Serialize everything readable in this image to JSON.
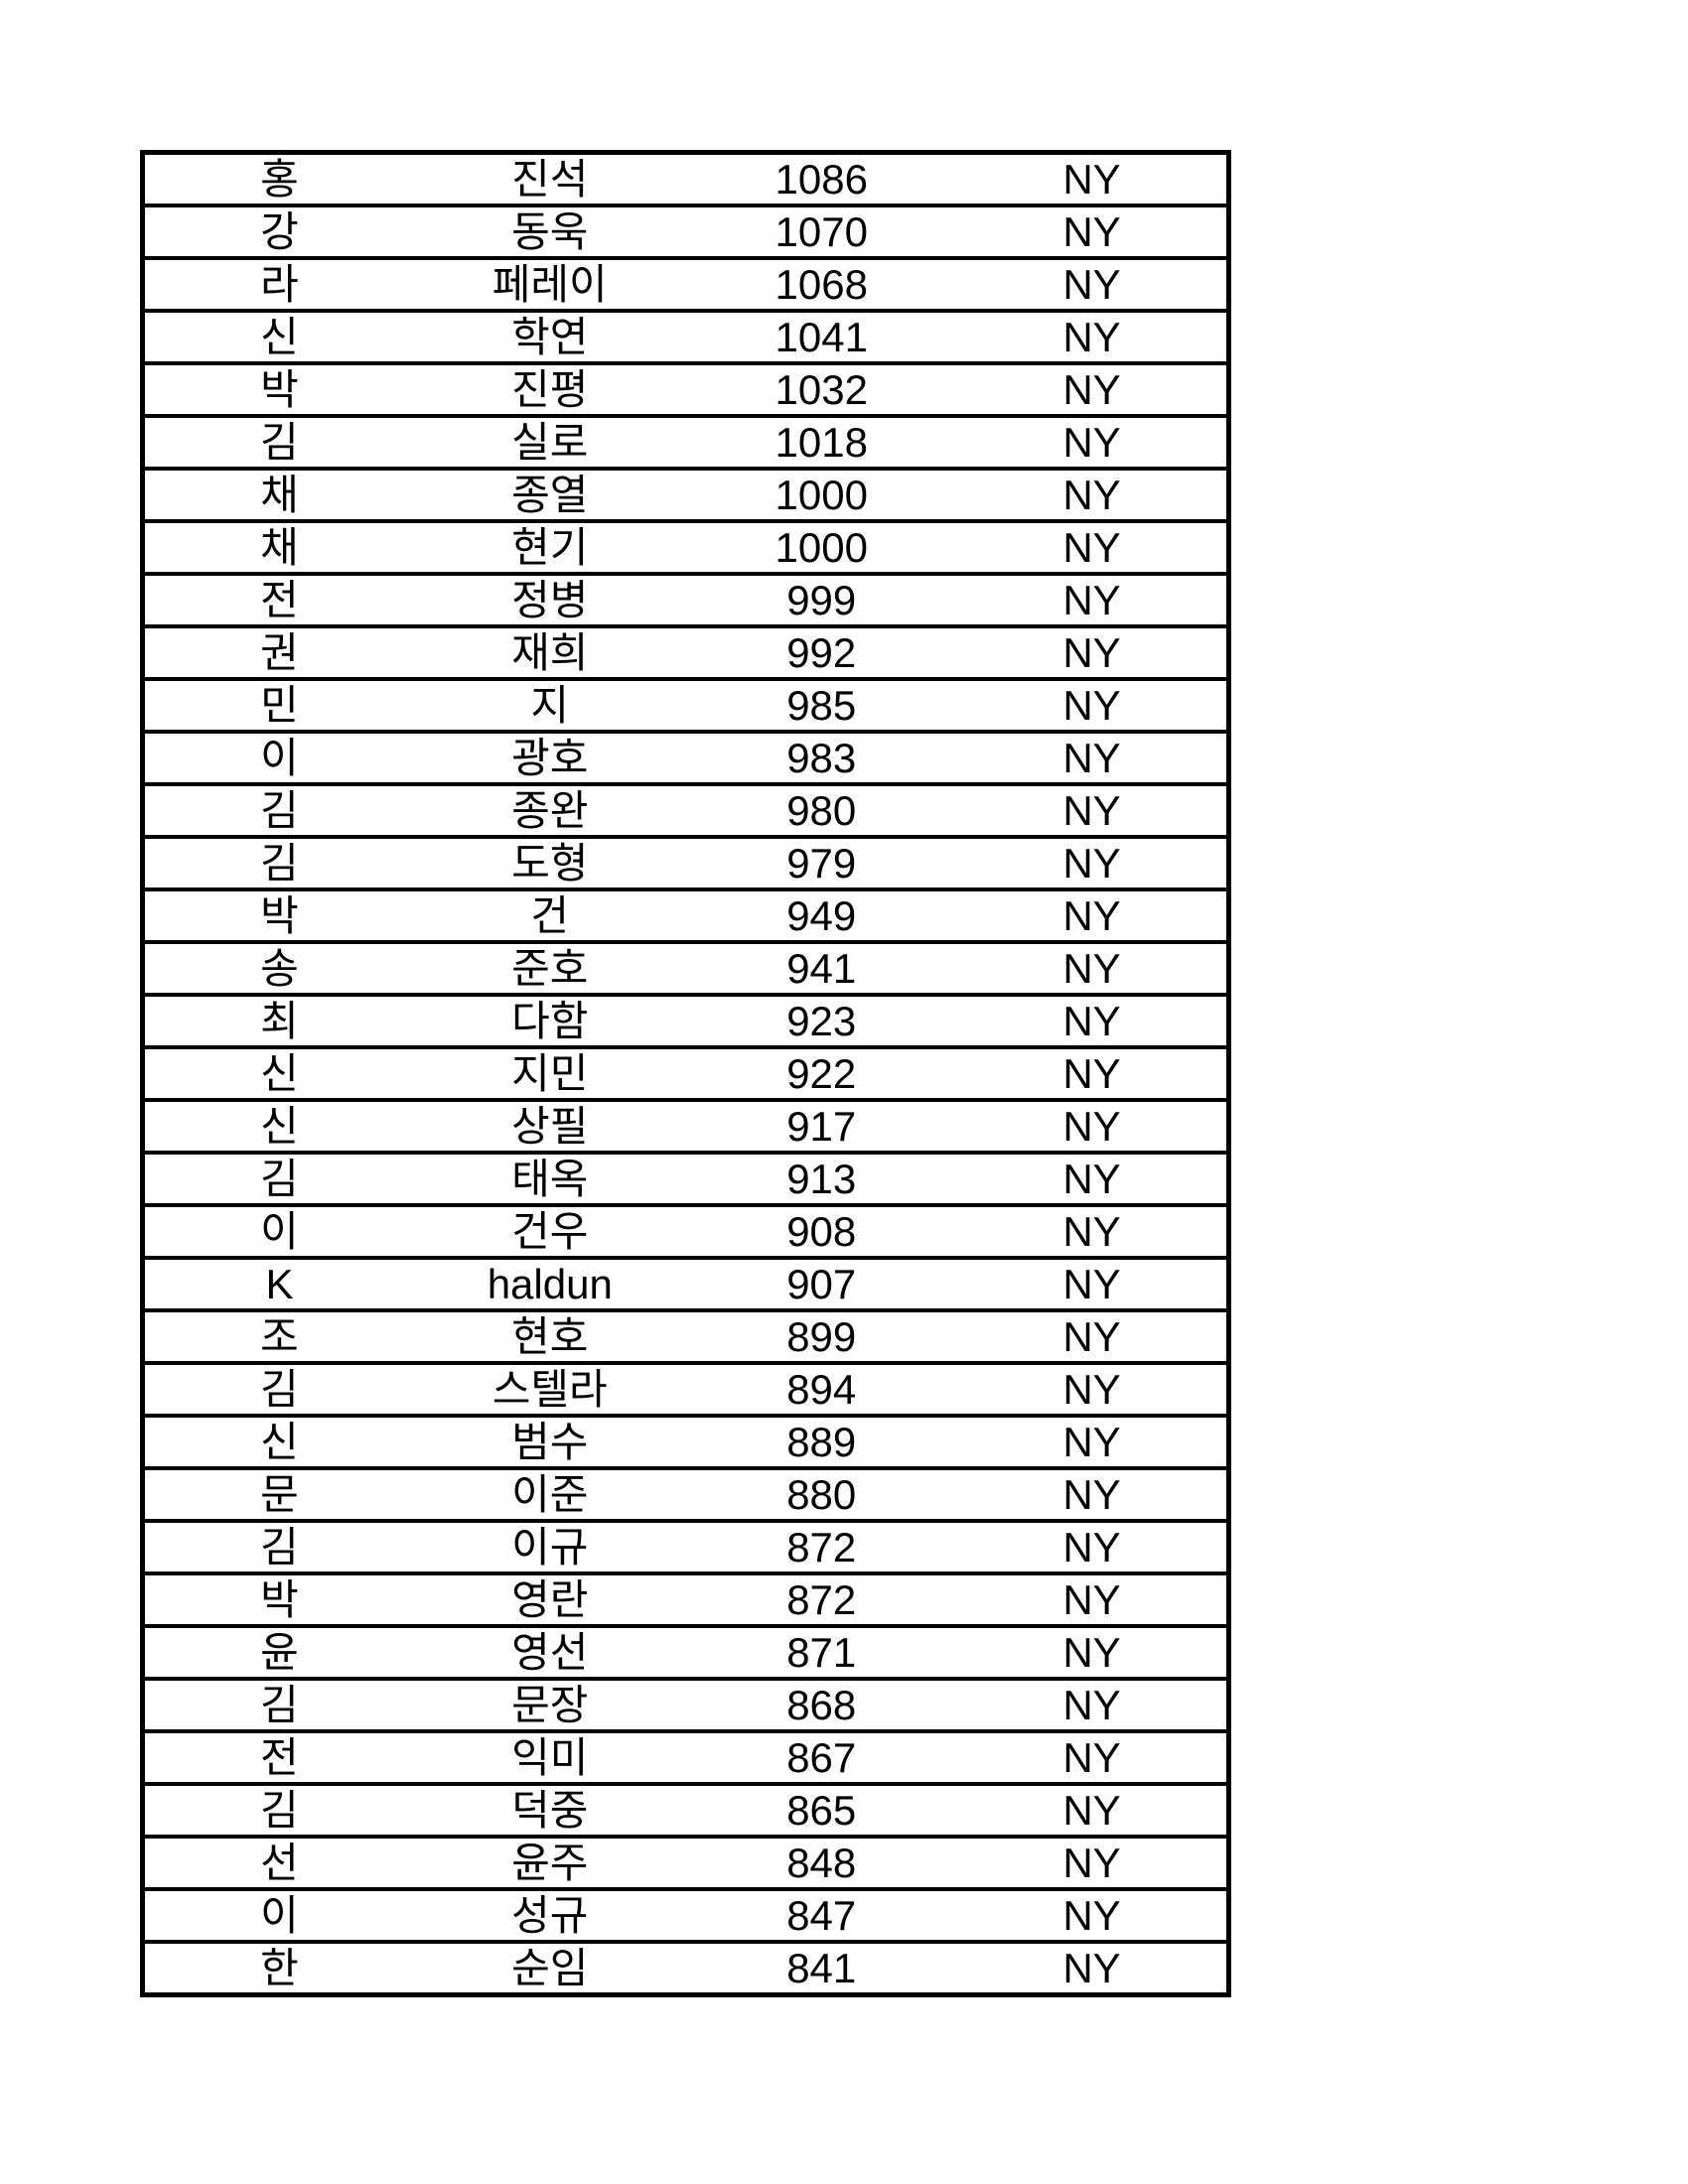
{
  "page": {
    "background_color": "#ffffff",
    "text_color": "#000000",
    "border_color": "#000000"
  },
  "table": {
    "rows": [
      {
        "last": "홍",
        "first": "진석",
        "rating": "1086",
        "state": "NY"
      },
      {
        "last": "강",
        "first": "동욱",
        "rating": "1070",
        "state": "NY"
      },
      {
        "last": "라",
        "first": "페레이",
        "rating": "1068",
        "state": "NY"
      },
      {
        "last": "신",
        "first": "학연",
        "rating": "1041",
        "state": "NY"
      },
      {
        "last": "박",
        "first": "진평",
        "rating": "1032",
        "state": "NY"
      },
      {
        "last": "김",
        "first": "실로",
        "rating": "1018",
        "state": "NY"
      },
      {
        "last": "채",
        "first": "종열",
        "rating": "1000",
        "state": "NY"
      },
      {
        "last": "채",
        "first": "현기",
        "rating": "1000",
        "state": "NY"
      },
      {
        "last": "전",
        "first": "정병",
        "rating": "999",
        "state": "NY"
      },
      {
        "last": "권",
        "first": "재희",
        "rating": "992",
        "state": "NY"
      },
      {
        "last": "민",
        "first": "지",
        "rating": "985",
        "state": "NY"
      },
      {
        "last": "이",
        "first": "광호",
        "rating": "983",
        "state": "NY"
      },
      {
        "last": "김",
        "first": "종완",
        "rating": "980",
        "state": "NY"
      },
      {
        "last": "김",
        "first": "도형",
        "rating": "979",
        "state": "NY"
      },
      {
        "last": "박",
        "first": "건",
        "rating": "949",
        "state": "NY"
      },
      {
        "last": "송",
        "first": "준호",
        "rating": "941",
        "state": "NY"
      },
      {
        "last": "최",
        "first": "다함",
        "rating": "923",
        "state": "NY"
      },
      {
        "last": "신",
        "first": "지민",
        "rating": "922",
        "state": "NY"
      },
      {
        "last": "신",
        "first": "상필",
        "rating": "917",
        "state": "NY"
      },
      {
        "last": "김",
        "first": "태옥",
        "rating": "913",
        "state": "NY"
      },
      {
        "last": "이",
        "first": "건우",
        "rating": "908",
        "state": "NY"
      },
      {
        "last": "K",
        "first": "haldun",
        "rating": "907",
        "state": "NY"
      },
      {
        "last": "조",
        "first": "현호",
        "rating": "899",
        "state": "NY"
      },
      {
        "last": "김",
        "first": "스텔라",
        "rating": "894",
        "state": "NY"
      },
      {
        "last": "신",
        "first": "범수",
        "rating": "889",
        "state": "NY"
      },
      {
        "last": "문",
        "first": "이준",
        "rating": "880",
        "state": "NY"
      },
      {
        "last": "김",
        "first": "이규",
        "rating": "872",
        "state": "NY"
      },
      {
        "last": "박",
        "first": "영란",
        "rating": "872",
        "state": "NY"
      },
      {
        "last": "윤",
        "first": "영선",
        "rating": "871",
        "state": "NY"
      },
      {
        "last": "김",
        "first": "문장",
        "rating": "868",
        "state": "NY"
      },
      {
        "last": "전",
        "first": "익미",
        "rating": "867",
        "state": "NY"
      },
      {
        "last": "김",
        "first": "덕중",
        "rating": "865",
        "state": "NY"
      },
      {
        "last": "선",
        "first": "윤주",
        "rating": "848",
        "state": "NY"
      },
      {
        "last": "이",
        "first": "성규",
        "rating": "847",
        "state": "NY"
      },
      {
        "last": "한",
        "first": "순임",
        "rating": "841",
        "state": "NY"
      }
    ]
  }
}
